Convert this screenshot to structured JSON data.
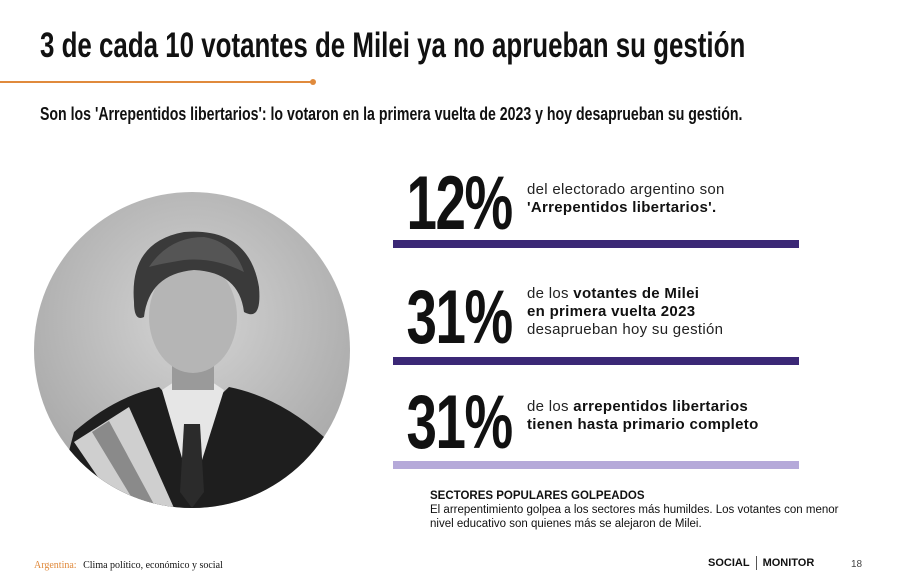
{
  "header": {
    "title": "3 de cada 10 votantes de Milei ya no aprueban su gestión",
    "subtitle": "Son los 'Arrepentidos libertarios': lo votaron en la primera vuelta de 2023 y hoy desaprueban su gestión."
  },
  "stats": [
    {
      "value": "12%",
      "bar_color": "#3b2876",
      "lines": [
        [
          {
            "text": "del electorado argentino son",
            "bold": false
          }
        ],
        [
          {
            "text": "'Arrepentidos libertarios'.",
            "bold": true
          }
        ]
      ]
    },
    {
      "value": "31%",
      "bar_color": "#3b2876",
      "lines": [
        [
          {
            "text": "de los ",
            "bold": false
          },
          {
            "text": "votantes de Milei",
            "bold": true
          }
        ],
        [
          {
            "text": "en primera vuelta 2023",
            "bold": true
          }
        ],
        [
          {
            "text": "desaprueban hoy su gestión",
            "bold": false
          }
        ]
      ]
    },
    {
      "value": "31%",
      "bar_color": "#b5a9d9",
      "lines": [
        [
          {
            "text": "de los ",
            "bold": false
          },
          {
            "text": "arrepentidos libertarios",
            "bold": true
          }
        ],
        [
          {
            "text": "tienen hasta primario completo",
            "bold": true
          }
        ]
      ]
    }
  ],
  "note": {
    "heading": "SECTORES POPULARES GOLPEADOS",
    "body": "El arrepentimiento golpea a los sectores más humildes. Los votantes con menor nivel educativo son quienes más se alejaron de Milei."
  },
  "footer": {
    "country": "Argentina:",
    "report": "Clima político, económico y social",
    "logo_1": "SOCIAL",
    "logo_2": "MONITOR",
    "page": "18"
  }
}
